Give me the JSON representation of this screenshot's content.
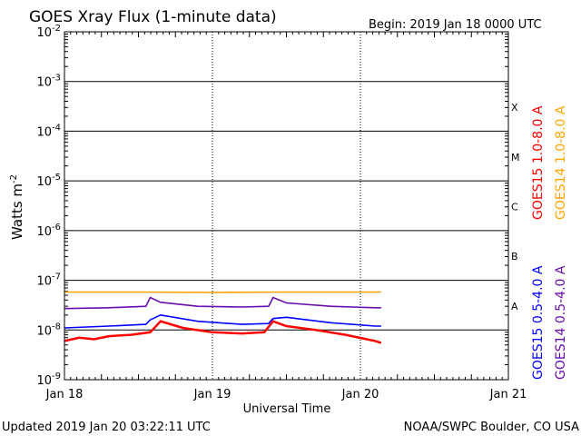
{
  "title": "GOES Xray Flux (1-minute data)",
  "begin": "Begin:  2019 Jan 18 0000 UTC",
  "updated": "Updated 2019 Jan 20 03:22:11 UTC",
  "credit": "NOAA/SWPC Boulder, CO USA",
  "colors": {
    "red": "#ff0000",
    "orange": "#ffa500",
    "blue": "#0000ff",
    "purple": "#6a0dad"
  },
  "chart_data": {
    "type": "line",
    "title": "GOES Xray Flux (1-minute data)",
    "xlabel": "Universal Time",
    "ylabel_base": "Watts m",
    "ylabel_exp": "-2",
    "y_scale": "log",
    "ylim": [
      1e-09,
      0.01
    ],
    "xlim_days": [
      0,
      3
    ],
    "x_ticks": [
      "Jan 18",
      "Jan 19",
      "Jan 20",
      "Jan 21"
    ],
    "y_ticks": [
      {
        "base": "10",
        "exp": "-2"
      },
      {
        "base": "10",
        "exp": "-3"
      },
      {
        "base": "10",
        "exp": "-4"
      },
      {
        "base": "10",
        "exp": "-5"
      },
      {
        "base": "10",
        "exp": "-6"
      },
      {
        "base": "10",
        "exp": "-7"
      },
      {
        "base": "10",
        "exp": "-8"
      },
      {
        "base": "10",
        "exp": "-9"
      }
    ],
    "flare_classes": [
      "X",
      "M",
      "C",
      "B",
      "A"
    ],
    "grid": true,
    "legend_position": "right",
    "series": [
      {
        "name": "GOES15 1.0-8.0 A",
        "color": "#ff0000",
        "x": [
          0,
          0.1,
          0.2,
          0.3,
          0.45,
          0.58,
          0.65,
          0.8,
          1.0,
          1.2,
          1.35,
          1.41,
          1.5,
          1.7,
          1.9,
          2.1,
          2.14
        ],
        "y": [
          6e-09,
          7e-09,
          6.5e-09,
          7.5e-09,
          8e-09,
          9e-09,
          1.5e-08,
          1.1e-08,
          9e-09,
          8.5e-09,
          9e-09,
          1.5e-08,
          1.2e-08,
          1e-08,
          8e-09,
          6e-09,
          5.5e-09
        ]
      },
      {
        "name": "GOES14 1.0-8.0 A",
        "color": "#ffa500",
        "x": [
          0,
          0.5,
          1.0,
          1.5,
          2.0,
          2.14
        ],
        "y": [
          5.8e-08,
          5.8e-08,
          5.7e-08,
          5.8e-08,
          5.8e-08,
          5.8e-08
        ]
      },
      {
        "name": "GOES15 0.5-4.0 A",
        "color": "#0000ff",
        "x": [
          0,
          0.3,
          0.55,
          0.58,
          0.65,
          0.9,
          1.2,
          1.38,
          1.41,
          1.5,
          1.8,
          2.1,
          2.14
        ],
        "y": [
          1.1e-08,
          1.2e-08,
          1.3e-08,
          1.6e-08,
          2e-08,
          1.5e-08,
          1.3e-08,
          1.35e-08,
          1.7e-08,
          1.8e-08,
          1.4e-08,
          1.2e-08,
          1.2e-08
        ]
      },
      {
        "name": "GOES14 0.5-4.0 A",
        "color": "#6a0dad",
        "x": [
          0,
          0.3,
          0.55,
          0.58,
          0.65,
          0.9,
          1.2,
          1.38,
          1.41,
          1.5,
          1.8,
          2.1,
          2.14
        ],
        "y": [
          2.7e-08,
          2.8e-08,
          3e-08,
          4.5e-08,
          3.6e-08,
          3e-08,
          2.9e-08,
          3e-08,
          4.5e-08,
          3.5e-08,
          3e-08,
          2.8e-08,
          2.8e-08
        ]
      }
    ]
  }
}
